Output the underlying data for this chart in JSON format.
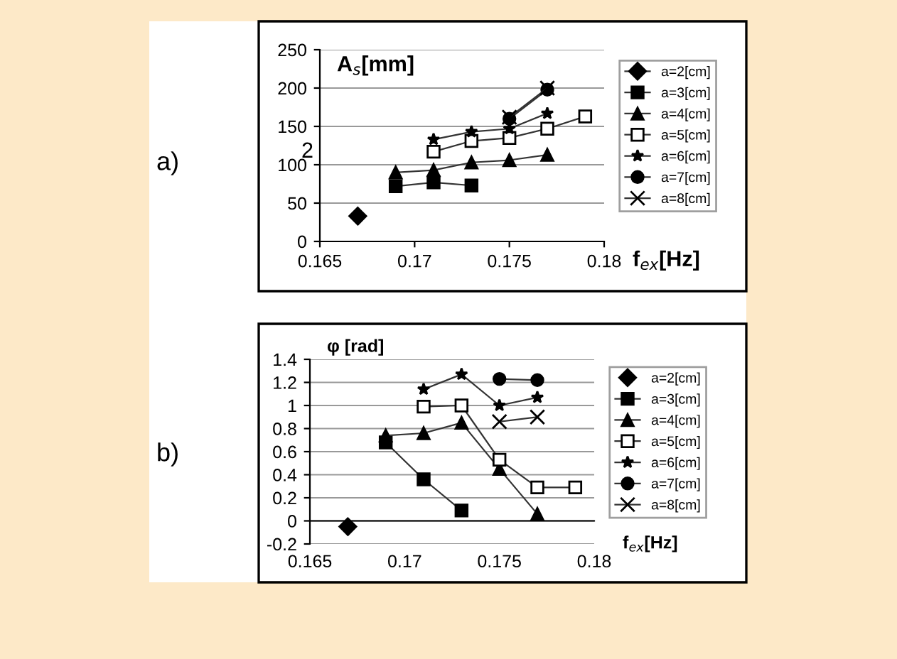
{
  "chart_data": [
    {
      "type": "line",
      "ylabel": "A$_{s}$[mm]",
      "xlabel": "f$_{ex}$[Hz]",
      "annotations": [
        "a)",
        "2"
      ],
      "xlim": [
        0.165,
        0.18
      ],
      "xticks": [
        0.165,
        0.17,
        0.175,
        0.18
      ],
      "ylim": [
        0,
        250
      ],
      "yticks": [
        0,
        50,
        100,
        150,
        200,
        250
      ],
      "grid": "y",
      "legend": "right",
      "series": [
        {
          "name": "a=2[cm]",
          "color": "#000000",
          "marker": "diamond",
          "line_style": "solid",
          "x": [
            0.167
          ],
          "values": [
            33
          ]
        },
        {
          "name": "a=3[cm]",
          "color": "#000000",
          "marker": "square",
          "line_style": "solid",
          "x": [
            0.169,
            0.171,
            0.173
          ],
          "values": [
            72,
            77,
            73
          ]
        },
        {
          "name": "a=4[cm]",
          "color": "#000000",
          "marker": "triangle",
          "line_style": "solid",
          "x": [
            0.169,
            0.171,
            0.173,
            0.175,
            0.177
          ],
          "values": [
            90,
            93,
            103,
            106,
            113
          ]
        },
        {
          "name": "a=5[cm]",
          "color": "#ffffff",
          "marker": "square",
          "line_style": "solid",
          "x": [
            0.171,
            0.173,
            0.175,
            0.177,
            0.179
          ],
          "values": [
            117,
            131,
            135,
            147,
            163
          ]
        },
        {
          "name": "a=6[cm]",
          "color": "#000000",
          "marker": "star",
          "line_style": "solid",
          "x": [
            0.171,
            0.173,
            0.175,
            0.177
          ],
          "values": [
            133,
            143,
            147,
            167
          ]
        },
        {
          "name": "a=7[cm]",
          "color": "#000000",
          "marker": "circle",
          "line_style": "solid",
          "x": [
            0.175,
            0.177
          ],
          "values": [
            160,
            198
          ]
        },
        {
          "name": "a=8[cm]",
          "color": "#000000",
          "marker": "cross",
          "line_style": "solid",
          "x": [
            0.175,
            0.177
          ],
          "values": [
            162,
            200
          ]
        }
      ]
    },
    {
      "type": "line",
      "ylabel": "φ [rad]",
      "xlabel": "f$_{ex}$[Hz]",
      "annotations": [
        "b)"
      ],
      "xlim": [
        0.165,
        0.18
      ],
      "xticks": [
        0.165,
        0.17,
        0.175,
        0.18
      ],
      "ylim": [
        -0.2,
        1.4
      ],
      "yticks": [
        -0.2,
        0,
        0.2,
        0.4,
        0.6,
        0.8,
        1,
        1.2,
        1.4
      ],
      "grid": "y",
      "legend": "right",
      "series": [
        {
          "name": "a=2[cm]",
          "color": "#000000",
          "marker": "diamond",
          "line_style": "none",
          "x": [
            0.167
          ],
          "values": [
            -0.05
          ]
        },
        {
          "name": "a=3[cm]",
          "color": "#000000",
          "marker": "square",
          "line_style": "solid",
          "x": [
            0.169,
            0.171,
            0.173
          ],
          "values": [
            0.68,
            0.36,
            0.09
          ]
        },
        {
          "name": "a=4[cm]",
          "color": "#000000",
          "marker": "triangle",
          "line_style": "solid",
          "x": [
            0.169,
            0.171,
            0.173,
            0.175,
            0.177
          ],
          "values": [
            0.74,
            0.76,
            0.85,
            0.45,
            0.06
          ]
        },
        {
          "name": "a=5[cm]",
          "color": "#ffffff",
          "marker": "square",
          "line_style": "solid",
          "x": [
            0.171,
            0.173,
            0.175,
            0.177,
            0.179
          ],
          "values": [
            0.99,
            1.0,
            0.53,
            0.29,
            0.29
          ]
        },
        {
          "name": "a=6[cm]",
          "color": "#000000",
          "marker": "star",
          "line_style": "solid",
          "x": [
            0.171,
            0.173,
            0.175,
            0.177
          ],
          "values": [
            1.14,
            1.27,
            1.0,
            1.07
          ]
        },
        {
          "name": "a=7[cm]",
          "color": "#000000",
          "marker": "circle",
          "line_style": "solid",
          "x": [
            0.175,
            0.177
          ],
          "values": [
            1.23,
            1.22
          ]
        },
        {
          "name": "a=8[cm]",
          "color": "#000000",
          "marker": "cross",
          "line_style": "solid",
          "x": [
            0.175,
            0.177
          ],
          "values": [
            0.86,
            0.9
          ]
        }
      ]
    }
  ]
}
